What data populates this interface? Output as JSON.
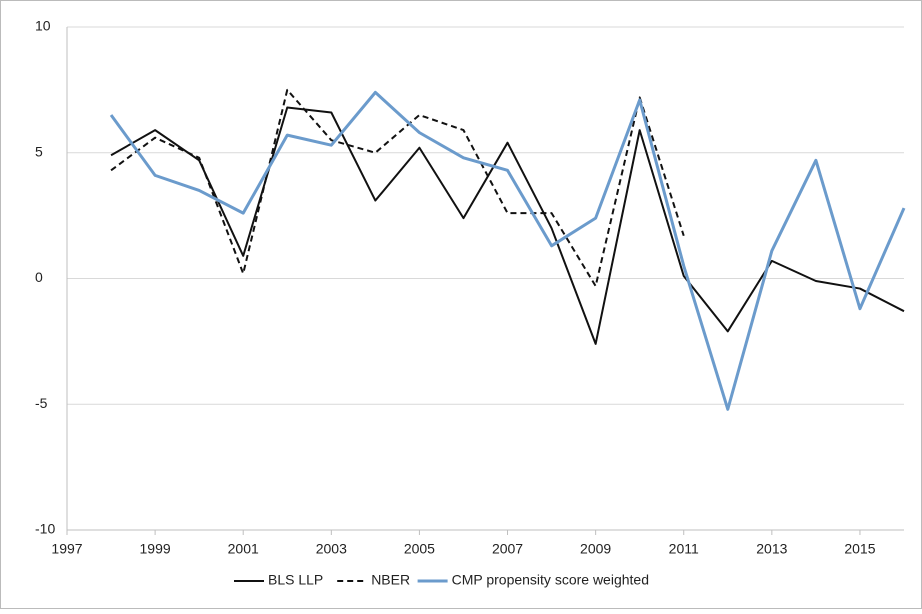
{
  "chart_data": {
    "type": "line",
    "x": [
      1998,
      1999,
      2000,
      2001,
      2002,
      2003,
      2004,
      2005,
      2006,
      2007,
      2008,
      2009,
      2010,
      2011,
      2012,
      2013,
      2014,
      2015,
      2016
    ],
    "series": [
      {
        "name": "BLS LLP",
        "color": "#111111",
        "dashed": false,
        "values": [
          4.9,
          5.9,
          4.7,
          0.9,
          6.8,
          6.6,
          3.1,
          5.2,
          2.4,
          5.4,
          2.0,
          -2.6,
          5.9,
          0.1,
          -2.1,
          0.7,
          -0.1,
          -0.4,
          -1.3
        ]
      },
      {
        "name": "NBER",
        "color": "#111111",
        "dashed": true,
        "values": [
          4.3,
          5.6,
          4.8,
          0.2,
          7.5,
          5.5,
          5.0,
          6.5,
          5.9,
          2.6,
          2.6,
          -0.3,
          7.2,
          1.7,
          null,
          null,
          null,
          null,
          null
        ]
      },
      {
        "name": "CMP propensity score weighted",
        "color": "#6b9bcc",
        "dashed": false,
        "values": [
          6.5,
          4.1,
          3.5,
          2.6,
          5.7,
          5.3,
          7.4,
          5.8,
          4.8,
          4.3,
          1.3,
          2.4,
          7.1,
          0.5,
          -5.2,
          1.1,
          4.7,
          -1.2,
          2.8
        ]
      }
    ],
    "xlim": [
      1997,
      2016
    ],
    "xticks": [
      1997,
      1999,
      2001,
      2003,
      2005,
      2007,
      2009,
      2011,
      2013,
      2015
    ],
    "ylim": [
      -10,
      10
    ],
    "yticks": [
      -10,
      -5,
      0,
      5,
      10
    ],
    "grid": true,
    "legend": "bottom"
  }
}
